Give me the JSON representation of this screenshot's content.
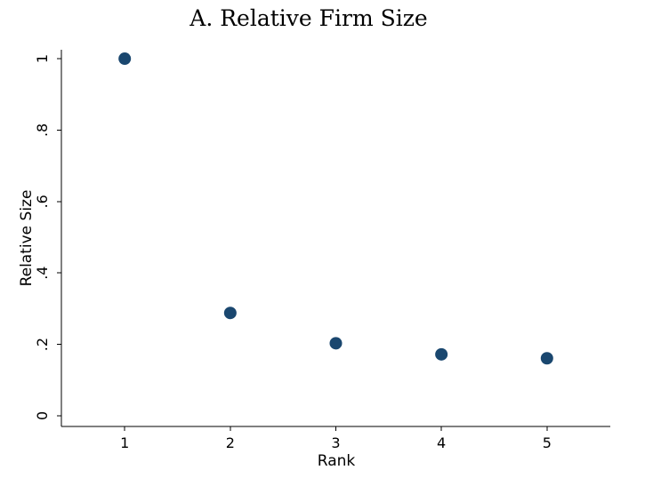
{
  "chart_data": {
    "type": "scatter",
    "title": "A. Relative Firm Size",
    "xlabel": "Rank",
    "ylabel": "Relative Size",
    "x": [
      1,
      2,
      3,
      4,
      5
    ],
    "y": [
      1.0,
      0.288,
      0.203,
      0.172,
      0.161
    ],
    "xticks": [
      1,
      2,
      3,
      4,
      5
    ],
    "xtick_labels": [
      "1",
      "2",
      "3",
      "4",
      "5"
    ],
    "yticks": [
      0,
      0.2,
      0.4,
      0.6,
      0.8,
      1.0
    ],
    "ytick_labels": [
      "0",
      ".2",
      ".4",
      ".6",
      ".8",
      "1"
    ],
    "xlim": [
      0.4,
      5.6
    ],
    "ylim": [
      -0.03,
      1.025
    ],
    "grid": false,
    "legend": "none",
    "marker_color": "#1a476f"
  }
}
